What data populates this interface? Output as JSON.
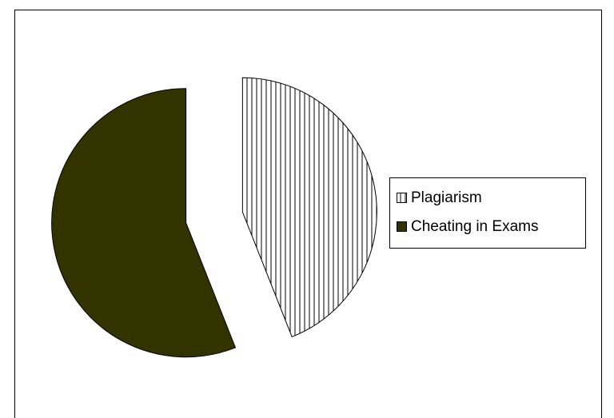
{
  "chart_data": {
    "type": "pie",
    "categories": [
      "Plagiarism",
      "Cheating in Exams"
    ],
    "values": [
      44,
      56
    ],
    "colors": [
      "#ffffff",
      "#333300"
    ],
    "patterns": [
      "vertical",
      null
    ],
    "start_angle": 0,
    "exploded": true,
    "legend": "right"
  }
}
